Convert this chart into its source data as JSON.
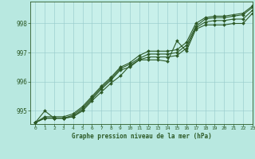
{
  "title": "Graphe pression niveau de la mer (hPa)",
  "bg_color": "#b8e8e0",
  "plot_bg_color": "#c8f0ea",
  "grid_color": "#99cccc",
  "line_color": "#2d5a27",
  "xlim": [
    -0.5,
    23
  ],
  "ylim": [
    994.55,
    998.75
  ],
  "yticks": [
    995,
    996,
    997,
    998
  ],
  "xticks": [
    0,
    1,
    2,
    3,
    4,
    5,
    6,
    7,
    8,
    9,
    10,
    11,
    12,
    13,
    14,
    15,
    16,
    17,
    18,
    19,
    20,
    21,
    22,
    23
  ],
  "lines": [
    [
      994.6,
      995.0,
      994.75,
      994.75,
      994.8,
      995.0,
      995.35,
      995.65,
      995.95,
      996.2,
      996.55,
      996.75,
      996.75,
      996.75,
      996.7,
      997.4,
      997.05,
      997.8,
      997.95,
      997.95,
      997.95,
      998.0,
      998.0,
      998.35
    ],
    [
      994.6,
      994.75,
      994.75,
      994.75,
      994.8,
      995.05,
      995.4,
      995.75,
      996.05,
      996.4,
      996.5,
      996.75,
      996.85,
      996.85,
      996.85,
      996.9,
      997.15,
      997.85,
      998.05,
      998.1,
      998.1,
      998.15,
      998.15,
      998.45
    ],
    [
      994.6,
      994.75,
      994.75,
      994.75,
      994.85,
      995.1,
      995.45,
      995.8,
      996.1,
      996.45,
      996.6,
      996.8,
      996.95,
      996.95,
      996.95,
      997.0,
      997.25,
      997.9,
      998.15,
      998.2,
      998.2,
      998.25,
      998.3,
      998.55
    ],
    [
      994.6,
      994.8,
      994.8,
      994.8,
      994.9,
      995.15,
      995.5,
      995.85,
      996.15,
      996.5,
      996.65,
      996.9,
      997.05,
      997.05,
      997.05,
      997.1,
      997.35,
      998.0,
      998.2,
      998.25,
      998.25,
      998.3,
      998.35,
      998.6
    ]
  ]
}
